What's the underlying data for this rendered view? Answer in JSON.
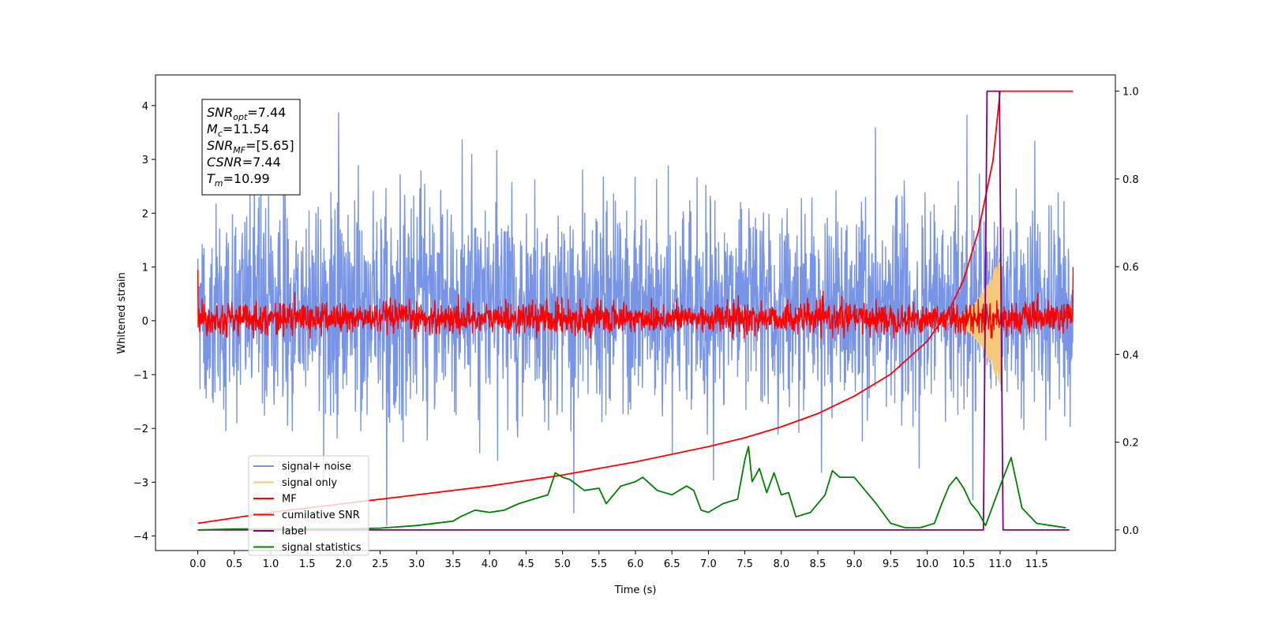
{
  "chart_data": {
    "type": "line",
    "xlabel": "Time (s)",
    "ylabel": "Whitened strain",
    "xlim": [
      -0.58,
      12.58
    ],
    "ylim": [
      -4.27,
      4.57
    ],
    "y2lim": [
      -0.047,
      1.037
    ],
    "x_ticks": [
      "0.0",
      "0.5",
      "1.0",
      "1.5",
      "2.0",
      "2.5",
      "3.0",
      "3.5",
      "4.0",
      "4.5",
      "5.0",
      "5.5",
      "6.0",
      "6.5",
      "7.0",
      "7.5",
      "8.0",
      "8.5",
      "9.0",
      "9.5",
      "10.0",
      "10.5",
      "11.0",
      "11.5"
    ],
    "y_ticks": [
      "4",
      "3",
      "2",
      "1",
      "0",
      "−1",
      "−2",
      "−3",
      "−4"
    ],
    "y2_ticks": [
      "1.0",
      "0.8",
      "0.6",
      "0.4",
      "0.2",
      "0.0"
    ],
    "info_box": [
      {
        "sym": "SNR",
        "sub": "opt",
        "value": "=7.44"
      },
      {
        "sym": "M",
        "sub": "c",
        "value": "=11.54"
      },
      {
        "sym": "SNR",
        "sub": "MF",
        "value": "=[5.65]"
      },
      {
        "sym": "CSNR",
        "sub": "",
        "value": "=7.44"
      },
      {
        "sym": "T",
        "sub": "m",
        "value": "=10.99"
      }
    ],
    "legend_position": "lower-left",
    "series": [
      {
        "name": "signal+ noise",
        "color": "#7894e6",
        "axis": "left",
        "style": "noise",
        "description_values": {
          "t_start": 0.0,
          "t_end": 12.0,
          "typical_range": [
            -2.2,
            2.8
          ],
          "extremes": [
            -3.8,
            4.2
          ]
        }
      },
      {
        "name": "signal only",
        "color": "#f5c97a",
        "axis": "left",
        "style": "chirp",
        "description_values": {
          "t_start": 10.2,
          "t_end": 11.0,
          "peak_amplitude": 1.2
        }
      },
      {
        "name": "MF",
        "color": "#ff0000",
        "axis": "left",
        "style": "mf",
        "description_values": {
          "t_start": 0.0,
          "t_end": 12.0,
          "typical_range": [
            -0.3,
            0.45
          ],
          "start_value": 0.95,
          "end_value": 1.0
        }
      },
      {
        "name": "cumilative SNR",
        "color": "#ff0000",
        "axis": "right",
        "x": [
          0.0,
          1.0,
          2.0,
          3.0,
          4.0,
          5.0,
          6.0,
          7.0,
          7.5,
          8.0,
          8.5,
          9.0,
          9.5,
          10.0,
          10.3,
          10.5,
          10.7,
          10.9,
          11.0,
          12.0
        ],
        "y": [
          0.015,
          0.04,
          0.06,
          0.08,
          0.1,
          0.125,
          0.155,
          0.19,
          0.21,
          0.235,
          0.265,
          0.305,
          0.355,
          0.43,
          0.5,
          0.57,
          0.68,
          0.84,
          1.0,
          1.0
        ]
      },
      {
        "name": "label",
        "color": "#800080",
        "axis": "right",
        "x": [
          0.0,
          10.77,
          10.82,
          10.99,
          11.04,
          11.95
        ],
        "y": [
          0.0,
          0.0,
          1.0,
          1.0,
          0.0,
          0.0
        ]
      },
      {
        "name": "signal statistics",
        "color": "#008000",
        "axis": "right",
        "x": [
          0.0,
          0.5,
          1.0,
          1.5,
          2.0,
          2.5,
          3.0,
          3.5,
          3.6,
          3.8,
          4.0,
          4.2,
          4.4,
          4.6,
          4.8,
          4.9,
          5.0,
          5.1,
          5.3,
          5.5,
          5.6,
          5.8,
          6.0,
          6.1,
          6.3,
          6.5,
          6.7,
          6.8,
          6.9,
          7.0,
          7.2,
          7.4,
          7.5,
          7.55,
          7.6,
          7.7,
          7.8,
          7.9,
          8.0,
          8.1,
          8.2,
          8.4,
          8.6,
          8.7,
          8.8,
          9.0,
          9.1,
          9.3,
          9.5,
          9.7,
          9.9,
          10.0,
          10.1,
          10.2,
          10.3,
          10.4,
          10.5,
          10.6,
          10.7,
          10.8,
          11.0,
          11.15,
          11.3,
          11.5,
          11.7,
          11.9
        ],
        "y": [
          0.0,
          0.002,
          0.002,
          0.002,
          0.002,
          0.004,
          0.01,
          0.02,
          0.03,
          0.045,
          0.04,
          0.045,
          0.06,
          0.07,
          0.08,
          0.13,
          0.12,
          0.115,
          0.09,
          0.095,
          0.06,
          0.1,
          0.11,
          0.12,
          0.09,
          0.08,
          0.1,
          0.09,
          0.045,
          0.04,
          0.06,
          0.07,
          0.16,
          0.19,
          0.11,
          0.14,
          0.085,
          0.13,
          0.08,
          0.085,
          0.03,
          0.04,
          0.08,
          0.135,
          0.12,
          0.12,
          0.1,
          0.06,
          0.015,
          0.005,
          0.005,
          0.01,
          0.015,
          0.06,
          0.1,
          0.12,
          0.095,
          0.06,
          0.04,
          0.01,
          0.1,
          0.165,
          0.05,
          0.015,
          0.01,
          0.005
        ]
      }
    ]
  }
}
